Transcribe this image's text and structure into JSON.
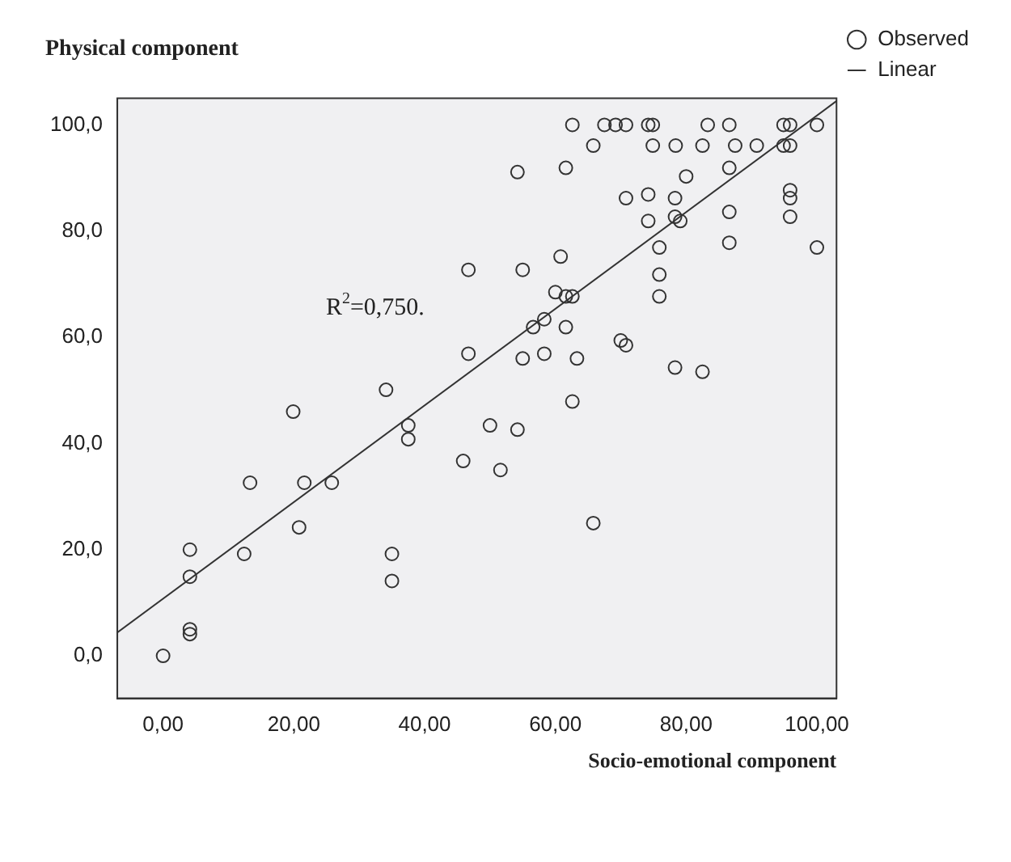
{
  "chart_data": {
    "type": "scatter",
    "title": "Physical component",
    "xlabel": "Socio-emotional component",
    "xlim": [
      -7,
      103
    ],
    "ylim": [
      -8,
      105
    ],
    "xticks": [
      {
        "value": 0,
        "label": "0,00"
      },
      {
        "value": 20,
        "label": "20,00"
      },
      {
        "value": 40,
        "label": "40,00"
      },
      {
        "value": 60,
        "label": "60,00"
      },
      {
        "value": 80,
        "label": "80,00"
      },
      {
        "value": 100,
        "label": "100,00"
      }
    ],
    "yticks": [
      {
        "value": 0,
        "label": "0,0"
      },
      {
        "value": 20,
        "label": "20,0"
      },
      {
        "value": 40,
        "label": "40,0"
      },
      {
        "value": 60,
        "label": "60,0"
      },
      {
        "value": 80,
        "label": "80,0"
      },
      {
        "value": 100,
        "label": "100,0"
      }
    ],
    "grid": false,
    "legend": "top right",
    "marker": "circle",
    "annotations": [
      "R$^{2}$=0,750."
    ],
    "series": [
      {
        "name": "Observed",
        "color": "#333333",
        "x": [
          62.6,
          67.5,
          69.2,
          70.8,
          74.2,
          74.9,
          83.3,
          86.6,
          94.9,
          95.9,
          100,
          65.8,
          74.9,
          78.4,
          82.5,
          87.5,
          90.8,
          94.9,
          95.9,
          54.2,
          61.6,
          86.6,
          80.0,
          70.8,
          78.3,
          74.2,
          95.9,
          95.9,
          86.6,
          95.9,
          78.3,
          74.2,
          79.1,
          86.6,
          75.9,
          100,
          60.8,
          46.7,
          55.0,
          75.9,
          60.0,
          75.9,
          61.6,
          62.6,
          58.3,
          56.6,
          61.6,
          70.0,
          70.8,
          46.7,
          58.3,
          55.0,
          63.3,
          78.3,
          82.5,
          62.6,
          50.0,
          54.2,
          45.9,
          51.6,
          65.8,
          34.1,
          19.9,
          37.5,
          37.5,
          13.3,
          21.6,
          25.8,
          20.8,
          4.1,
          12.4,
          35.0,
          4.1,
          35.0,
          4.1,
          4.1,
          0
        ],
        "values": [
          100,
          100,
          100,
          100,
          100,
          100,
          100,
          100,
          100,
          100,
          100,
          96.1,
          96.1,
          96.1,
          96.1,
          96.1,
          96.1,
          96.1,
          96.1,
          91.1,
          91.9,
          91.9,
          90.3,
          86.2,
          86.2,
          86.9,
          87.7,
          86.2,
          83.6,
          82.7,
          82.7,
          81.9,
          81.9,
          77.8,
          76.9,
          76.9,
          75.2,
          72.7,
          72.7,
          71.8,
          68.5,
          67.7,
          67.7,
          67.7,
          63.4,
          61.9,
          61.9,
          59.4,
          58.5,
          56.9,
          56.9,
          56.0,
          56.0,
          54.3,
          53.5,
          47.9,
          43.4,
          42.6,
          36.7,
          35.0,
          25.0,
          50.1,
          46.0,
          43.4,
          40.8,
          32.6,
          32.6,
          32.6,
          24.2,
          20.0,
          19.2,
          19.2,
          14.9,
          14.1,
          5.0,
          4.1,
          0
        ]
      },
      {
        "name": "Linear",
        "type": "line",
        "color": "#333333",
        "marker": "none",
        "x": [
          -7,
          103
        ],
        "values": [
          4.4,
          104.5
        ]
      }
    ]
  }
}
